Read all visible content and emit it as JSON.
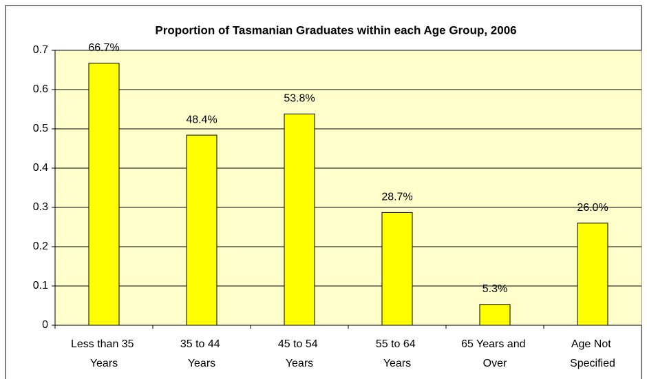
{
  "chart_data": {
    "type": "bar",
    "title": "Proportion of Tasmanian Graduates within each Age Group, 2006",
    "categories": [
      "Less than 35 Years",
      "35 to 44 Years",
      "45 to 54 Years",
      "55 to 64 Years",
      "65 Years and Over",
      "Age Not Specified"
    ],
    "values": [
      0.667,
      0.484,
      0.538,
      0.287,
      0.053,
      0.26
    ],
    "value_labels": [
      "66.7%",
      "48.4%",
      "53.8%",
      "28.7%",
      "5.3%",
      "26.0%"
    ],
    "color": "#ffff00",
    "ylim": [
      0,
      0.7
    ],
    "yticks": [
      0,
      0.1,
      0.2,
      0.3,
      0.4,
      0.5,
      0.6,
      0.7
    ],
    "grid": true
  }
}
